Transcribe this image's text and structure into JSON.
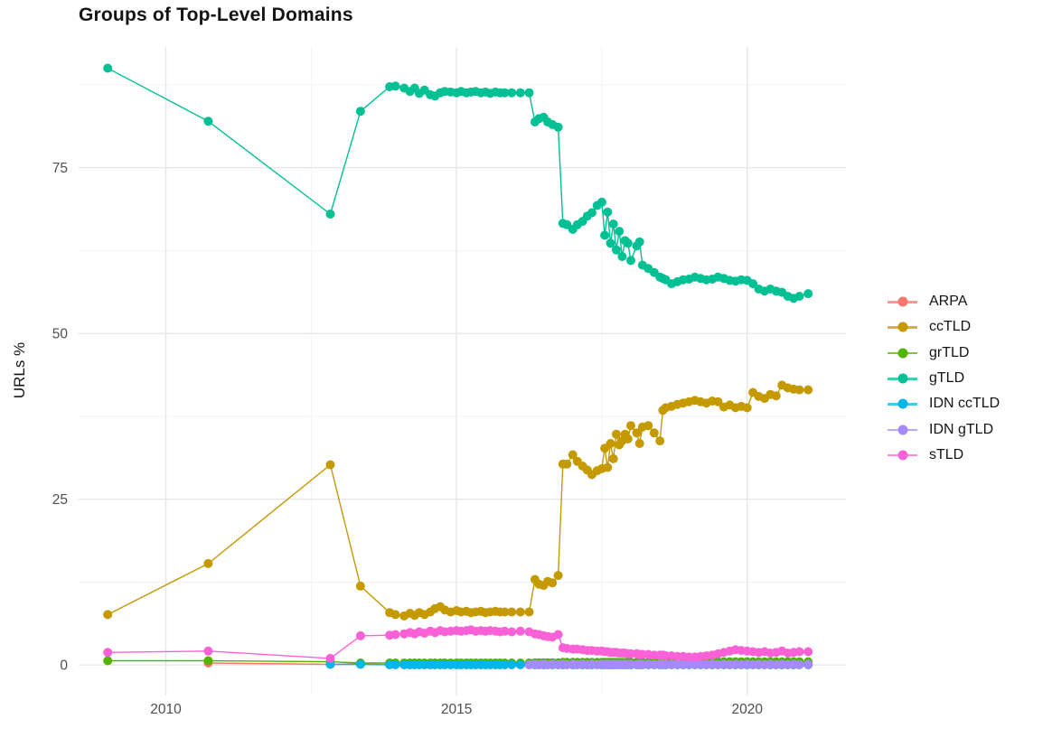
{
  "chart_data": {
    "type": "line",
    "title": "Groups of Top-Level Domains",
    "xlabel": "",
    "ylabel": "URLs %",
    "legend_position": "right",
    "grid": true,
    "x_range": [
      2008.5,
      2021.7
    ],
    "y_range": [
      -4.6,
      93.2
    ],
    "x_ticks": [
      2010,
      2015,
      2020
    ],
    "x_tick_labels": [
      "2010",
      "2015",
      "2020"
    ],
    "x_minor": [
      2012.5,
      2017.5
    ],
    "y_ticks": [
      0,
      25,
      50,
      75
    ],
    "y_tick_labels": [
      "0",
      "25",
      "50",
      "75"
    ],
    "y_minor": [
      12.5,
      37.5,
      62.5,
      87.5
    ],
    "x": [
      2009.0,
      2010.73,
      2012.83,
      2013.35,
      2013.85,
      2013.95,
      2014.1,
      2014.2,
      2014.28,
      2014.36,
      2014.45,
      2014.55,
      2014.63,
      2014.72,
      2014.8,
      2014.9,
      2015.0,
      2015.08,
      2015.17,
      2015.25,
      2015.33,
      2015.42,
      2015.5,
      2015.58,
      2015.67,
      2015.75,
      2015.83,
      2015.95,
      2016.1,
      2016.25,
      2016.35,
      2016.42,
      2016.5,
      2016.57,
      2016.65,
      2016.75,
      2016.83,
      2016.9,
      2017.0,
      2017.08,
      2017.17,
      2017.25,
      2017.33,
      2017.42,
      2017.5,
      2017.55,
      2017.6,
      2017.65,
      2017.7,
      2017.75,
      2017.8,
      2017.85,
      2017.9,
      2017.95,
      2018.0,
      2018.1,
      2018.15,
      2018.2,
      2018.3,
      2018.4,
      2018.5,
      2018.55,
      2018.6,
      2018.7,
      2018.8,
      2018.9,
      2019.0,
      2019.1,
      2019.2,
      2019.3,
      2019.4,
      2019.5,
      2019.6,
      2019.7,
      2019.8,
      2019.9,
      2020.0,
      2020.1,
      2020.2,
      2020.3,
      2020.4,
      2020.5,
      2020.6,
      2020.7,
      2020.8,
      2020.9,
      2021.05
    ],
    "series": [
      {
        "name": "ARPA",
        "color": "#F8766D",
        "values": [
          null,
          0.3,
          0.1,
          0.2,
          0.05,
          0.05,
          0.05,
          0.05,
          0.05,
          0.05,
          0.05,
          0.05,
          0.05,
          0.05,
          0.05,
          0.05,
          0.05,
          0.05,
          0.05,
          0.05,
          0.05,
          0.05,
          0.05,
          0.05,
          0.05,
          0.05,
          0.05,
          0.05,
          0.05,
          0.05,
          0.05,
          0.05,
          0.05,
          0.05,
          0.05,
          0.05,
          0.05,
          0.05,
          0.05,
          0.05,
          0.05,
          0.05,
          0.05,
          0.05,
          0.05,
          0.05,
          0.05,
          0.05,
          0.05,
          0.05,
          0.05,
          0.05,
          0.05,
          0.05,
          0.05,
          0.05,
          0.05,
          0.05,
          0.05,
          0.05,
          0.05,
          0.05,
          0.05,
          0.05,
          0.05,
          0.05,
          0.05,
          0.05,
          0.05,
          0.05,
          0.05,
          0.05,
          0.05,
          0.05,
          0.05,
          0.05,
          0.05,
          0.05,
          0.05,
          0.05,
          0.05,
          0.05,
          0.05,
          0.05,
          0.05,
          0.05,
          0.05
        ]
      },
      {
        "name": "ccTLD",
        "color": "#C49A00",
        "values": [
          7.6,
          15.3,
          30.2,
          11.9,
          7.9,
          7.6,
          7.4,
          7.8,
          7.5,
          7.9,
          7.6,
          8.0,
          8.5,
          8.8,
          8.3,
          8.0,
          8.2,
          8.0,
          8.1,
          7.9,
          8.0,
          8.1,
          7.9,
          8.0,
          8.1,
          8.0,
          8.0,
          8.0,
          8.0,
          8.0,
          12.9,
          12.2,
          12.0,
          12.6,
          12.4,
          13.5,
          30.3,
          30.3,
          31.7,
          30.7,
          30.0,
          29.4,
          28.7,
          29.3,
          29.6,
          32.7,
          29.8,
          33.4,
          31.1,
          34.8,
          33.2,
          33.8,
          34.8,
          34.1,
          36.1,
          35.0,
          33.4,
          35.9,
          36.1,
          35.0,
          33.8,
          38.4,
          38.8,
          39.0,
          39.3,
          39.5,
          39.7,
          39.9,
          39.7,
          39.5,
          39.8,
          39.7,
          38.9,
          39.2,
          38.8,
          39.0,
          38.8,
          41.1,
          40.5,
          40.2,
          40.8,
          40.6,
          42.2,
          41.8,
          41.6,
          41.5,
          41.5
        ]
      },
      {
        "name": "grTLD",
        "color": "#53B400",
        "values": [
          0.65,
          0.65,
          0.5,
          0.3,
          0.3,
          0.3,
          0.3,
          0.3,
          0.3,
          0.3,
          0.3,
          0.3,
          0.3,
          0.3,
          0.3,
          0.3,
          0.3,
          0.3,
          0.3,
          0.3,
          0.3,
          0.3,
          0.3,
          0.3,
          0.3,
          0.3,
          0.3,
          0.3,
          0.3,
          0.3,
          0.35,
          0.35,
          0.35,
          0.35,
          0.35,
          0.35,
          0.4,
          0.4,
          0.4,
          0.4,
          0.4,
          0.4,
          0.4,
          0.4,
          0.4,
          0.4,
          0.4,
          0.4,
          0.4,
          0.4,
          0.4,
          0.4,
          0.4,
          0.4,
          0.4,
          0.4,
          0.4,
          0.4,
          0.4,
          0.4,
          0.5,
          0.5,
          0.5,
          0.5,
          0.5,
          0.5,
          0.5,
          0.5,
          0.5,
          0.5,
          0.5,
          0.5,
          0.5,
          0.5,
          0.5,
          0.5,
          0.5,
          0.5,
          0.5,
          0.5,
          0.5,
          0.5,
          0.5,
          0.5,
          0.5,
          0.5,
          0.5
        ]
      },
      {
        "name": "gTLD",
        "color": "#00C094",
        "values": [
          90,
          82,
          68,
          83.5,
          87.2,
          87.3,
          87.0,
          86.5,
          87.0,
          86.2,
          86.7,
          86.0,
          85.8,
          86.3,
          86.5,
          86.4,
          86.3,
          86.5,
          86.3,
          86.4,
          86.5,
          86.3,
          86.4,
          86.2,
          86.4,
          86.3,
          86.3,
          86.3,
          86.3,
          86.3,
          81.9,
          82.4,
          82.6,
          81.9,
          81.5,
          81.1,
          66.6,
          66.4,
          65.7,
          66.4,
          66.9,
          67.7,
          68.2,
          69.3,
          69.8,
          64.8,
          68.3,
          63.6,
          66.5,
          62.6,
          65.4,
          61.6,
          64.0,
          63.6,
          61.0,
          63.2,
          63.8,
          60.3,
          59.8,
          59.2,
          58.5,
          58.3,
          58.1,
          57.5,
          57.8,
          58.1,
          58.2,
          58.5,
          58.3,
          58.1,
          58.2,
          58.5,
          58.3,
          58.0,
          57.9,
          58.1,
          58.0,
          57.5,
          56.7,
          56.4,
          56.7,
          56.4,
          56.2,
          55.6,
          55.3,
          55.6,
          56.0
        ]
      },
      {
        "name": "IDN ccTLD",
        "color": "#00B6EB",
        "values": [
          null,
          null,
          0.1,
          0.1,
          0.05,
          0.05,
          0.05,
          0.05,
          0.05,
          0.05,
          0.05,
          0.05,
          0.05,
          0.05,
          0.05,
          0.05,
          0.05,
          0.05,
          0.05,
          0.05,
          0.05,
          0.05,
          0.05,
          0.05,
          0.05,
          0.05,
          0.05,
          0.05,
          0.05,
          0.05,
          0.05,
          0.05,
          0.05,
          0.05,
          0.05,
          0.05,
          0.05,
          0.05,
          0.05,
          0.05,
          0.05,
          0.05,
          0.05,
          0.05,
          0.05,
          0.05,
          0.05,
          0.05,
          0.05,
          0.05,
          0.05,
          0.05,
          0.05,
          0.05,
          0.05,
          0.05,
          0.05,
          0.05,
          0.05,
          0.05,
          0.05,
          0.05,
          0.05,
          0.05,
          0.05,
          0.05,
          0.05,
          0.05,
          0.05,
          0.05,
          0.05,
          0.05,
          0.05,
          0.05,
          0.05,
          0.05,
          0.05,
          0.05,
          0.05,
          0.05,
          0.05,
          0.05,
          0.05,
          0.05,
          0.05,
          0.05,
          0.05
        ]
      },
      {
        "name": "IDN gTLD",
        "color": "#A58AFF",
        "values": [
          null,
          null,
          null,
          null,
          null,
          null,
          null,
          null,
          null,
          null,
          null,
          null,
          null,
          null,
          null,
          null,
          null,
          null,
          null,
          null,
          null,
          null,
          null,
          null,
          null,
          null,
          null,
          null,
          null,
          0.05,
          0.12,
          0.05,
          0.12,
          0.05,
          0.12,
          0.05,
          0.12,
          0.05,
          0.12,
          0.05,
          0.12,
          0.05,
          0.12,
          0.05,
          0.12,
          0.05,
          0.12,
          0.05,
          0.12,
          0.05,
          0.12,
          0.05,
          0.12,
          0.05,
          0.12,
          0.05,
          0.12,
          0.05,
          0.12,
          0.05,
          0.12,
          0.05,
          0.12,
          0.05,
          0.12,
          0.05,
          0.12,
          0.05,
          0.12,
          0.05,
          0.12,
          0.05,
          0.12,
          0.05,
          0.12,
          0.05,
          0.12,
          0.05,
          0.12,
          0.05,
          0.12,
          0.05,
          0.12,
          0.05,
          0.12,
          0.05,
          0.12
        ]
      },
      {
        "name": "sTLD",
        "color": "#FB61D7",
        "values": [
          1.9,
          2.1,
          1.0,
          4.4,
          4.5,
          4.6,
          4.7,
          4.9,
          4.7,
          5.0,
          4.8,
          5.1,
          4.9,
          5.2,
          5.0,
          5.1,
          5.2,
          5.1,
          5.2,
          5.3,
          5.1,
          5.2,
          5.1,
          5.2,
          5.1,
          5.0,
          5.1,
          5.0,
          5.1,
          5.0,
          4.7,
          4.6,
          4.4,
          4.3,
          4.2,
          4.6,
          2.6,
          2.5,
          2.4,
          2.4,
          2.3,
          2.2,
          2.2,
          2.1,
          2.1,
          2.0,
          2.0,
          1.9,
          1.9,
          1.9,
          1.8,
          1.8,
          1.8,
          1.7,
          1.7,
          1.7,
          1.6,
          1.6,
          1.6,
          1.5,
          1.5,
          1.5,
          1.4,
          1.4,
          1.3,
          1.3,
          1.2,
          1.2,
          1.3,
          1.4,
          1.5,
          1.7,
          1.9,
          2.1,
          2.3,
          2.2,
          2.1,
          2.0,
          1.9,
          2.0,
          1.8,
          1.9,
          2.1,
          1.8,
          1.9,
          2.0,
          2.0
        ]
      }
    ]
  }
}
